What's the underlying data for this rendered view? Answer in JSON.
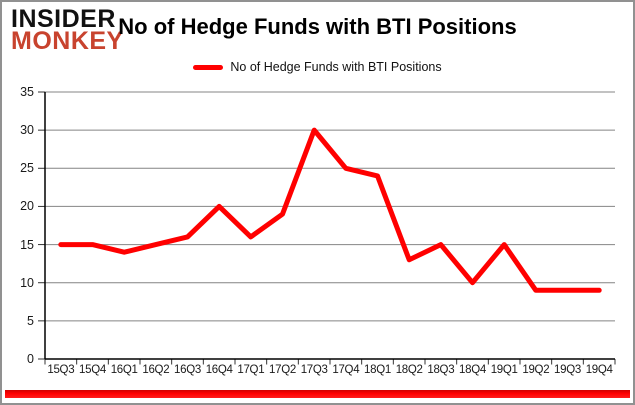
{
  "branding": {
    "line1": "INSIDER",
    "line2": "MONKEY",
    "monkey_color": "#c8432e"
  },
  "header": {
    "title": "No of Hedge Funds with BTI Positions"
  },
  "legend": {
    "label": "No of Hedge Funds with BTI Positions",
    "line_color": "#ff0000"
  },
  "chart_data": {
    "type": "line",
    "title": "No of Hedge Funds with BTI Positions",
    "categories": [
      "15Q3",
      "15Q4",
      "16Q1",
      "16Q2",
      "16Q3",
      "16Q4",
      "17Q1",
      "17Q2",
      "17Q3",
      "17Q4",
      "18Q1",
      "18Q2",
      "18Q3",
      "18Q4",
      "19Q1",
      "19Q2",
      "19Q3",
      "19Q4"
    ],
    "series": [
      {
        "name": "No of Hedge Funds with BTI Positions",
        "color": "#ff0000",
        "values": [
          15,
          15,
          14,
          15,
          16,
          20,
          16,
          19,
          30,
          25,
          24,
          13,
          15,
          10,
          15,
          9,
          9,
          9
        ]
      }
    ],
    "xlabel": "",
    "ylabel": "",
    "ylim": [
      0,
      35
    ],
    "yticks": [
      0,
      5,
      10,
      15,
      20,
      25,
      30,
      35
    ],
    "grid": true,
    "legend_position": "top-center"
  },
  "colors": {
    "gridline": "#848484",
    "axis": "#000000",
    "bottom_bar": "#ff0000"
  }
}
